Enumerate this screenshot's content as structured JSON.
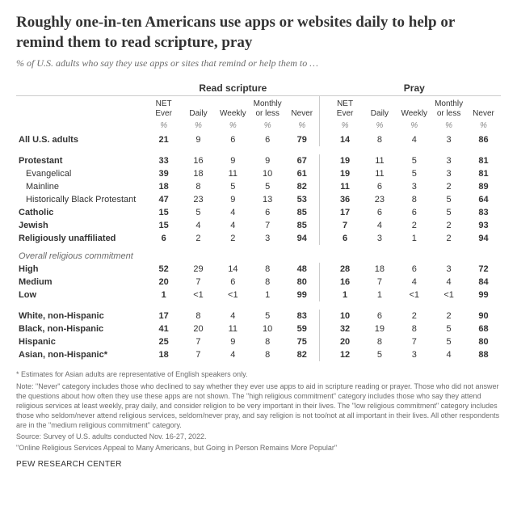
{
  "title": "Roughly one-in-ten Americans use apps or websites daily to help or remind them to read scripture, pray",
  "subtitle": "% of U.S. adults who say they use apps or sites that remind or help them to …",
  "groups": [
    "Read scripture",
    "Pray"
  ],
  "columns": [
    "NET Ever",
    "Daily",
    "Weekly",
    "Monthly or less",
    "Never"
  ],
  "pct": "%",
  "section_heading": "Overall religious commitment",
  "rows": [
    {
      "label": "All U.S. adults",
      "bold": true,
      "indent": 0,
      "rs": [
        "21",
        "9",
        "6",
        "6",
        "79"
      ],
      "pr": [
        "14",
        "8",
        "4",
        "3",
        "86"
      ]
    },
    {
      "spacer": true
    },
    {
      "label": "Protestant",
      "bold": true,
      "indent": 0,
      "rs": [
        "33",
        "16",
        "9",
        "9",
        "67"
      ],
      "pr": [
        "19",
        "11",
        "5",
        "3",
        "81"
      ]
    },
    {
      "label": "Evangelical",
      "bold": false,
      "indent": 1,
      "rs": [
        "39",
        "18",
        "11",
        "10",
        "61"
      ],
      "pr": [
        "19",
        "11",
        "5",
        "3",
        "81"
      ]
    },
    {
      "label": "Mainline",
      "bold": false,
      "indent": 1,
      "rs": [
        "18",
        "8",
        "5",
        "5",
        "82"
      ],
      "pr": [
        "11",
        "6",
        "3",
        "2",
        "89"
      ]
    },
    {
      "label": "Historically Black Protestant",
      "bold": false,
      "indent": 1,
      "rs": [
        "47",
        "23",
        "9",
        "13",
        "53"
      ],
      "pr": [
        "36",
        "23",
        "8",
        "5",
        "64"
      ]
    },
    {
      "label": "Catholic",
      "bold": true,
      "indent": 0,
      "rs": [
        "15",
        "5",
        "4",
        "6",
        "85"
      ],
      "pr": [
        "17",
        "6",
        "6",
        "5",
        "83"
      ]
    },
    {
      "label": "Jewish",
      "bold": true,
      "indent": 0,
      "rs": [
        "15",
        "4",
        "4",
        "7",
        "85"
      ],
      "pr": [
        "7",
        "4",
        "2",
        "2",
        "93"
      ]
    },
    {
      "label": "Religiously unaffiliated",
      "bold": true,
      "indent": 0,
      "rs": [
        "6",
        "2",
        "2",
        "3",
        "94"
      ],
      "pr": [
        "6",
        "3",
        "1",
        "2",
        "94"
      ]
    },
    {
      "heading": true
    },
    {
      "label": "High",
      "bold": true,
      "indent": 0,
      "rs": [
        "52",
        "29",
        "14",
        "8",
        "48"
      ],
      "pr": [
        "28",
        "18",
        "6",
        "3",
        "72"
      ]
    },
    {
      "label": "Medium",
      "bold": true,
      "indent": 0,
      "rs": [
        "20",
        "7",
        "6",
        "8",
        "80"
      ],
      "pr": [
        "16",
        "7",
        "4",
        "4",
        "84"
      ]
    },
    {
      "label": "Low",
      "bold": true,
      "indent": 0,
      "rs": [
        "1",
        "<1",
        "<1",
        "1",
        "99"
      ],
      "pr": [
        "1",
        "1",
        "<1",
        "<1",
        "99"
      ]
    },
    {
      "spacer": true
    },
    {
      "label": "White, non-Hispanic",
      "bold": true,
      "indent": 0,
      "rs": [
        "17",
        "8",
        "4",
        "5",
        "83"
      ],
      "pr": [
        "10",
        "6",
        "2",
        "2",
        "90"
      ]
    },
    {
      "label": "Black, non-Hispanic",
      "bold": true,
      "indent": 0,
      "rs": [
        "41",
        "20",
        "11",
        "10",
        "59"
      ],
      "pr": [
        "32",
        "19",
        "8",
        "5",
        "68"
      ]
    },
    {
      "label": "Hispanic",
      "bold": true,
      "indent": 0,
      "rs": [
        "25",
        "7",
        "9",
        "8",
        "75"
      ],
      "pr": [
        "20",
        "8",
        "7",
        "5",
        "80"
      ]
    },
    {
      "label": "Asian, non-Hispanic*",
      "bold": true,
      "indent": 0,
      "rs": [
        "18",
        "7",
        "4",
        "8",
        "82"
      ],
      "pr": [
        "12",
        "5",
        "3",
        "4",
        "88"
      ]
    }
  ],
  "notes": {
    "asterisk": "* Estimates for Asian adults are representative of English speakers only.",
    "note": "Note: \"Never\" category includes those who declined to say whether they ever use apps to aid in scripture reading or prayer. Those who did not answer the questions about how often they use these apps are not shown. The \"high religious commitment\" category includes those who say they attend religious services at least weekly, pray daily, and consider religion to be very important in their lives. The \"low religious commitment\" category includes those who seldom/never attend religious services, seldom/never pray, and say religion is not too/not at all important in their lives. All other respondents are in the \"medium religious commitment\" category.",
    "source": "Source: Survey of U.S. adults conducted Nov. 16-27, 2022.",
    "report": "\"Online Religious Services Appeal to Many Americans, but Going in Person Remains More Popular\""
  },
  "org": "PEW RESEARCH CENTER"
}
